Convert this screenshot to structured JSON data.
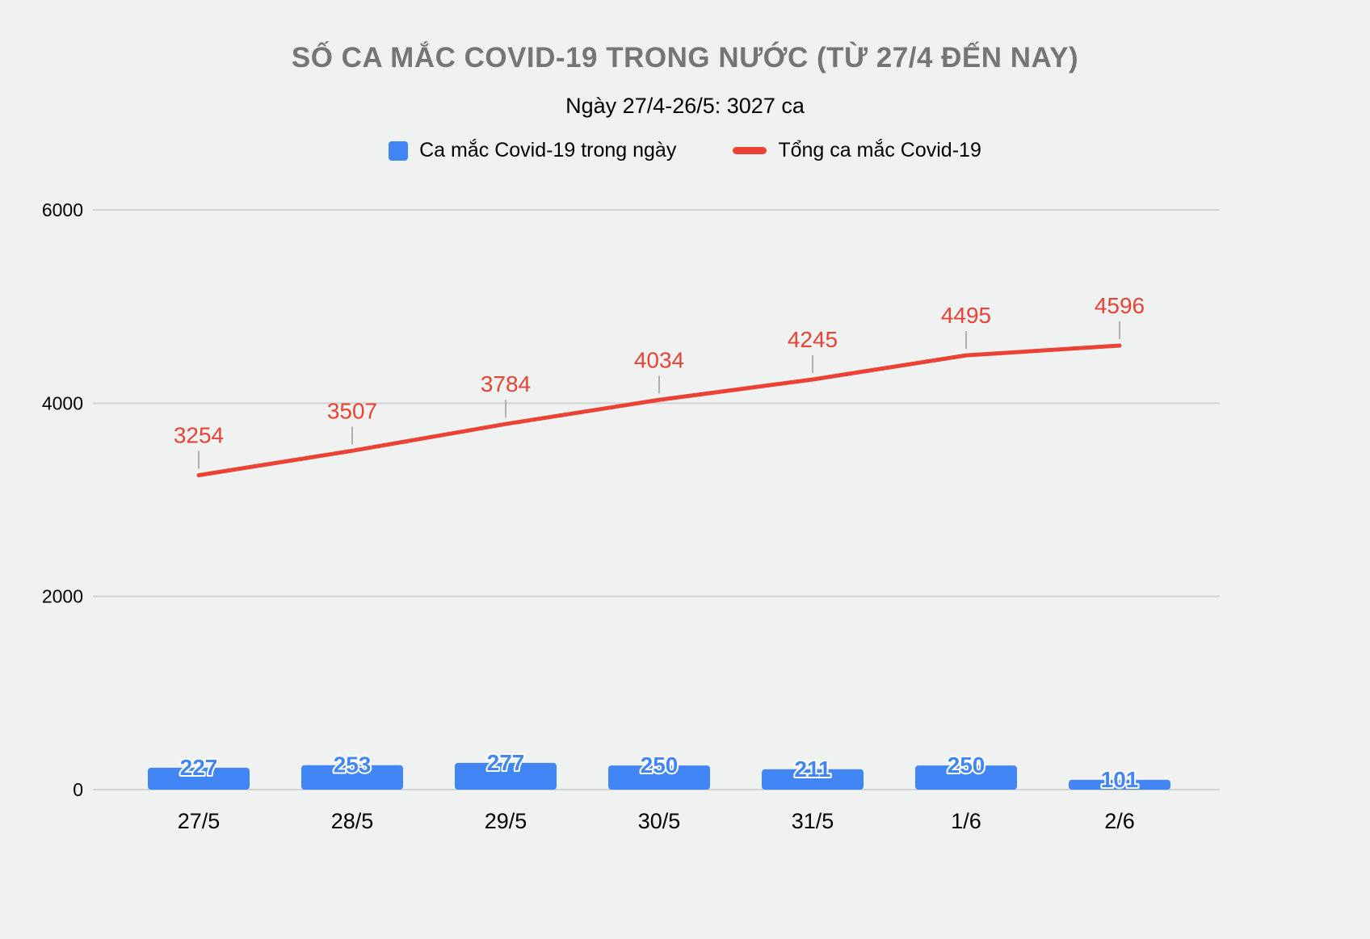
{
  "chart_data": {
    "type": "bar",
    "title": "SỐ CA MẮC COVID-19 TRONG NƯỚC (TỪ 27/4 ĐẾN NAY)",
    "subtitle": "Ngày 27/4-26/5: 3027 ca",
    "categories": [
      "27/5",
      "28/5",
      "29/5",
      "30/5",
      "31/5",
      "1/6",
      "2/6"
    ],
    "series": [
      {
        "name": "Ca mắc Covid-19 trong ngày",
        "type": "bar",
        "color": "#4285f4",
        "values": [
          227,
          253,
          277,
          250,
          211,
          250,
          101
        ]
      },
      {
        "name": "Tổng ca mắc Covid-19",
        "type": "line",
        "color": "#ea4335",
        "values": [
          3254,
          3507,
          3784,
          4034,
          4245,
          4495,
          4596
        ]
      }
    ],
    "ylim": [
      0,
      6000
    ],
    "yticks": [
      0,
      2000,
      4000,
      6000
    ],
    "grid": true,
    "legend_position": "top",
    "colors": {
      "background": "#f0f1f1",
      "grid_line": "#d2d2d2",
      "title": "#757575",
      "axis_text": "#000000",
      "bar": "#4285f4",
      "line": "#ea4335",
      "leader_line": "#b0b0b0"
    }
  }
}
